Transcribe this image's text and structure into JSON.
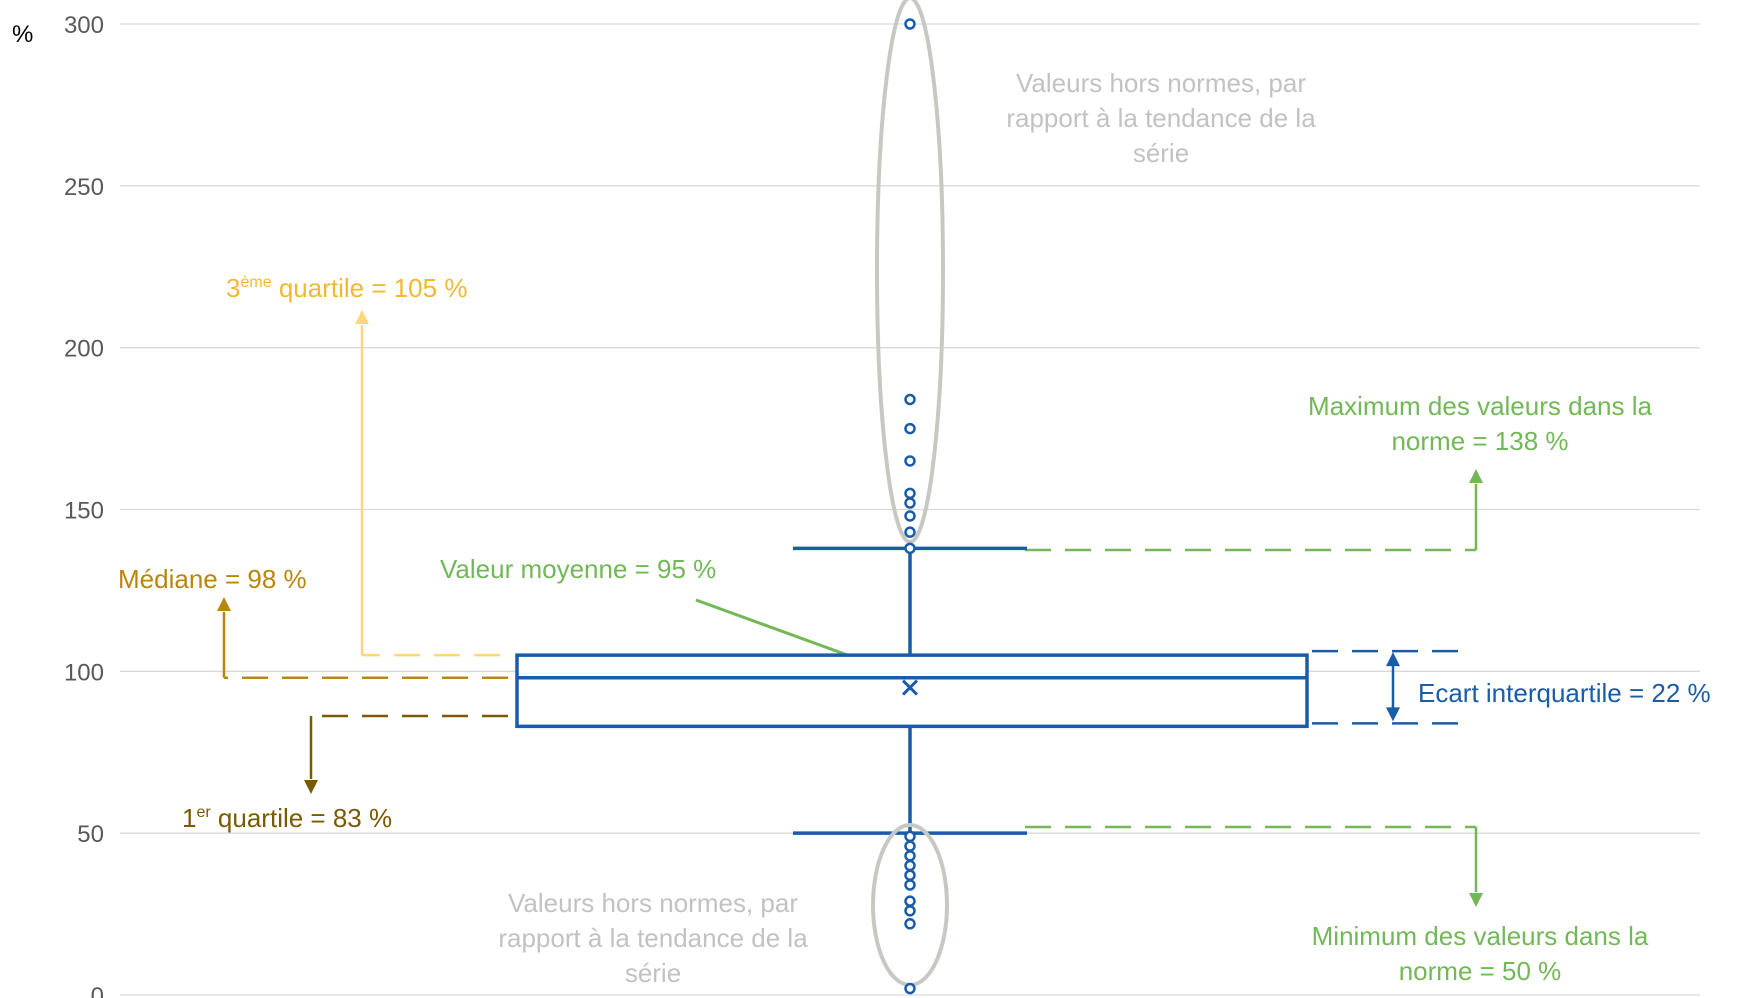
{
  "chart_data": {
    "type": "boxplot",
    "title": "",
    "xlabel": "",
    "ylabel": "%",
    "ylim": [
      0,
      300
    ],
    "grid": true,
    "y_ticks": [
      "0",
      "50",
      "100",
      "150",
      "200",
      "250",
      "300"
    ],
    "stats": {
      "q1": 83,
      "median": 98,
      "q3": 105,
      "mean": 95,
      "whisker_low": 50,
      "whisker_high": 138,
      "iqr": 22
    },
    "outliers_high": [
      138,
      143,
      148,
      152,
      155,
      165,
      175,
      184,
      300
    ],
    "outliers_low": [
      2,
      22,
      26,
      29,
      34,
      37,
      40,
      43,
      46,
      49
    ],
    "annotations": {
      "q3": {
        "sup": "ème",
        "pre": "3",
        "text": " quartile = 105 %"
      },
      "median": "Médiane = 98 %",
      "q1": {
        "sup": "er",
        "pre": "1",
        "text": " quartile = 83 %"
      },
      "mean": "Valeur moyenne = 95 %",
      "max": [
        "Maximum des valeurs dans la",
        "norme = 138 %"
      ],
      "min": [
        "Minimum des valeurs dans la",
        "norme = 50 %"
      ],
      "iqr": "Ecart interquartile  = 22 %",
      "outliers_high": [
        "Valeurs hors normes, par",
        "rapport à la tendance de la",
        "série"
      ],
      "outliers_low": [
        "Valeurs hors normes, par",
        "rapport à la tendance de la",
        "série"
      ]
    },
    "colors": {
      "box": "#1a5ca8",
      "q3": "#f2b830",
      "q3_line": "#ffd77a",
      "median": "#b8860b",
      "q1": "#7a5a00",
      "green": "#72b857",
      "outlier_label": "#c2c2c2",
      "ellipse": "#c8c8c3",
      "grid": "#d9d9d9",
      "axis_text": "#595959"
    }
  }
}
